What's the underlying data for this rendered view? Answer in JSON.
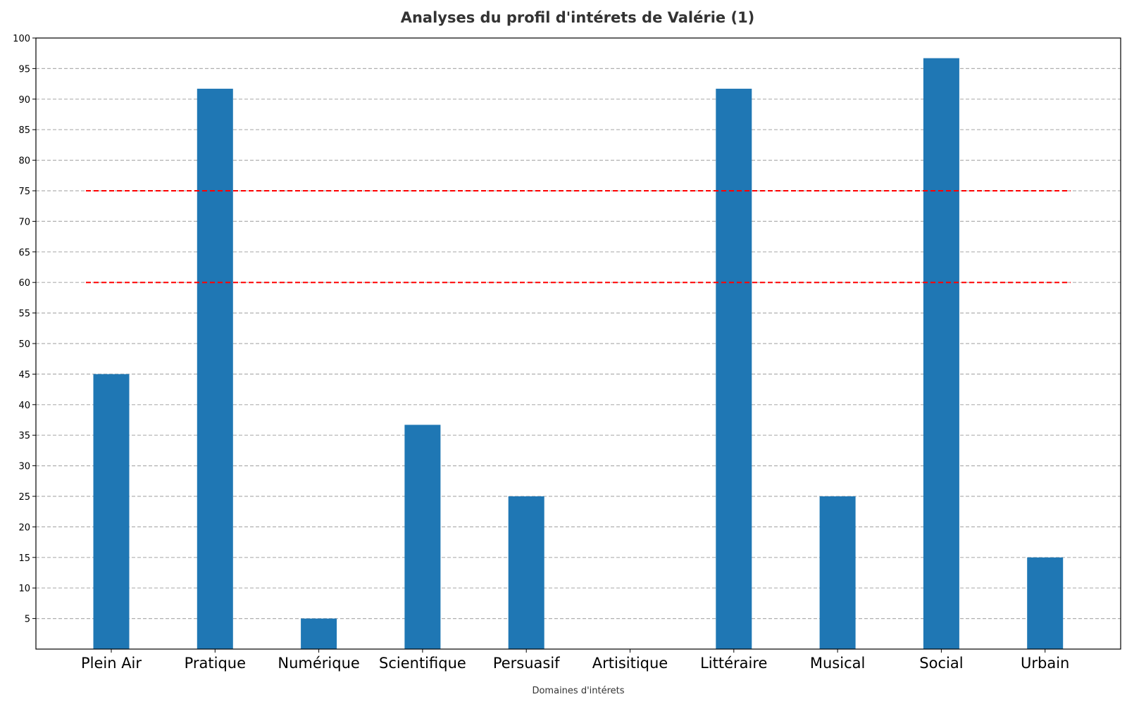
{
  "chart_data": {
    "type": "bar",
    "title": "Analyses du profil d'intérets de Valérie (1)",
    "xlabel": "Domaines d'intérets",
    "ylabel": "",
    "categories": [
      "Plein Air",
      "Pratique",
      "Numérique",
      "Scientifique",
      "Persuasif",
      "Artisitique",
      "Littéraire",
      "Musical",
      "Social",
      "Urbain"
    ],
    "values": [
      45,
      91.7,
      5,
      36.7,
      25,
      0,
      91.7,
      25,
      96.7,
      15
    ],
    "ylim": [
      0,
      100
    ],
    "yticks": [
      5,
      10,
      15,
      20,
      25,
      30,
      35,
      40,
      45,
      50,
      55,
      60,
      65,
      70,
      75,
      80,
      85,
      90,
      95,
      100
    ],
    "reference_lines": [
      60,
      75
    ],
    "grid": "horizontal dashed",
    "colors": {
      "bar": "#1f77b4",
      "reference_line": "#ff0000",
      "grid": "#b0b0b0"
    }
  }
}
